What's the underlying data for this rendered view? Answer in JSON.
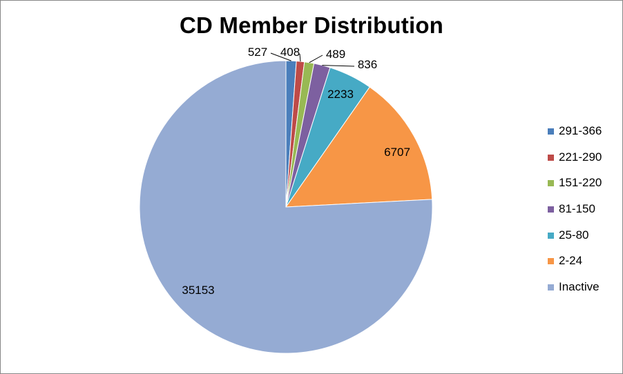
{
  "chart_data": {
    "type": "pie",
    "title": "CD Member Distribution",
    "categories": [
      "291-366",
      "221-290",
      "151-220",
      "81-150",
      "25-80",
      "2-24",
      "Inactive"
    ],
    "values": [
      527,
      408,
      489,
      836,
      2233,
      6707,
      35153
    ],
    "data_labels": [
      "527",
      "408",
      "489",
      "836",
      "2233",
      "6707",
      "35153"
    ],
    "colors": [
      "#4A7EBB",
      "#BE4B48",
      "#98B954",
      "#7D60A0",
      "#46AAC5",
      "#F79646",
      "#95ABD3"
    ],
    "start_angle_deg": 0,
    "direction": "clockwise",
    "legend_position": "right"
  }
}
